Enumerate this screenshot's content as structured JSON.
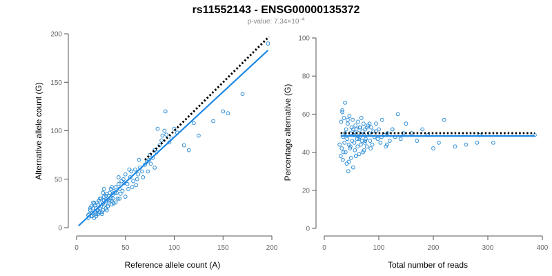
{
  "figure": {
    "title": "rs11552143 - ENSG00000135372",
    "subtitle_prefix": "p-value: 7.34×10",
    "subtitle_exp": "−4"
  },
  "colors": {
    "points": "#2b8cd6",
    "fit": "#1e88e5",
    "reference": "#000000",
    "axis": "#555555"
  },
  "chart_data": [
    {
      "type": "scatter",
      "xlabel": "Reference allele count (A)",
      "ylabel": "Alternative allele count (G)",
      "xlim": [
        0,
        200
      ],
      "ylim": [
        0,
        200
      ],
      "xticks": [
        0,
        50,
        100,
        150,
        200
      ],
      "yticks": [
        0,
        50,
        100,
        150,
        200
      ],
      "grid": false,
      "lines": [
        {
          "kind": "fit",
          "x": [
            2,
            196
          ],
          "y": [
            2,
            183
          ]
        },
        {
          "kind": "reference",
          "x": [
            70,
            197
          ],
          "y": [
            70,
            197
          ]
        }
      ],
      "x": [
        12,
        13,
        14,
        15,
        15,
        16,
        17,
        18,
        18,
        19,
        20,
        20,
        21,
        22,
        22,
        23,
        24,
        25,
        25,
        26,
        27,
        27,
        28,
        29,
        30,
        30,
        31,
        32,
        32,
        33,
        34,
        35,
        35,
        36,
        37,
        38,
        38,
        40,
        41,
        42,
        43,
        44,
        45,
        46,
        48,
        50,
        50,
        52,
        53,
        55,
        56,
        58,
        60,
        62,
        63,
        65,
        67,
        70,
        72,
        74,
        75,
        78,
        80,
        82,
        85,
        87,
        88,
        90,
        92,
        95,
        97,
        100,
        103,
        110,
        115,
        120,
        125,
        140,
        150,
        155,
        170,
        196,
        14,
        16,
        19,
        21,
        23,
        26,
        28,
        31,
        33,
        36,
        39,
        42,
        47,
        54,
        61,
        68,
        76,
        83,
        91,
        12,
        17,
        22,
        27,
        32,
        37,
        43,
        49,
        57,
        64,
        73,
        80,
        33,
        30,
        28,
        40,
        44,
        36,
        24,
        20
      ],
      "y": [
        10,
        14,
        18,
        12,
        22,
        15,
        20,
        10,
        25,
        16,
        20,
        12,
        18,
        24,
        14,
        28,
        20,
        22,
        30,
        16,
        25,
        18,
        32,
        24,
        28,
        20,
        35,
        22,
        30,
        26,
        36,
        30,
        40,
        28,
        34,
        38,
        25,
        42,
        36,
        30,
        45,
        40,
        35,
        48,
        50,
        32,
        55,
        45,
        40,
        52,
        58,
        48,
        60,
        50,
        55,
        62,
        58,
        65,
        68,
        70,
        75,
        72,
        80,
        78,
        85,
        90,
        95,
        100,
        96,
        88,
        92,
        102,
        98,
        85,
        80,
        108,
        95,
        110,
        120,
        118,
        138,
        190,
        20,
        12,
        23,
        26,
        16,
        14,
        28,
        18,
        33,
        24,
        36,
        30,
        38,
        60,
        44,
        52,
        66,
        102,
        120,
        13,
        26,
        18,
        36,
        22,
        30,
        52,
        46,
        42,
        70,
        58,
        62,
        28,
        33,
        40,
        26,
        30,
        42,
        30,
        14
      ]
    },
    {
      "type": "scatter",
      "xlabel": "Total number of reads",
      "ylabel": "Percentage alternative (G)",
      "xlim": [
        0,
        400
      ],
      "ylim": [
        0,
        100
      ],
      "xticks": [
        0,
        100,
        200,
        300,
        400
      ],
      "yticks": [
        0,
        20,
        40,
        60,
        80,
        100
      ],
      "grid": false,
      "lines": [
        {
          "kind": "fit",
          "x": [
            30,
            386
          ],
          "y": [
            48.5,
            48.5
          ]
        },
        {
          "kind": "reference",
          "x": [
            30,
            386
          ],
          "y": [
            50,
            50
          ]
        }
      ],
      "x": [
        28,
        30,
        31,
        32,
        33,
        34,
        35,
        36,
        37,
        38,
        39,
        40,
        41,
        42,
        43,
        44,
        45,
        46,
        47,
        48,
        49,
        50,
        51,
        52,
        53,
        54,
        55,
        56,
        57,
        58,
        59,
        60,
        61,
        62,
        63,
        64,
        65,
        66,
        67,
        68,
        69,
        70,
        71,
        72,
        73,
        74,
        75,
        76,
        78,
        80,
        82,
        84,
        86,
        88,
        90,
        92,
        95,
        98,
        100,
        103,
        106,
        110,
        113,
        116,
        120,
        125,
        130,
        135,
        140,
        145,
        150,
        160,
        170,
        180,
        190,
        200,
        210,
        220,
        240,
        260,
        280,
        285,
        310,
        386,
        35,
        45,
        55,
        65,
        75,
        85,
        95,
        105,
        115,
        125,
        33,
        43,
        53,
        63,
        73,
        83,
        38,
        48,
        58,
        68,
        78
      ],
      "y": [
        44,
        38,
        56,
        42,
        62,
        36,
        48,
        58,
        45,
        66,
        40,
        52,
        34,
        47,
        55,
        30,
        44,
        59,
        42,
        50,
        37,
        53,
        46,
        57,
        32,
        49,
        45,
        41,
        54,
        38,
        52,
        47,
        43,
        56,
        50,
        39,
        48,
        53,
        44,
        58,
        46,
        51,
        40,
        55,
        49,
        45,
        52,
        47,
        43,
        54,
        50,
        46,
        53,
        44,
        51,
        48,
        55,
        47,
        52,
        45,
        57,
        49,
        43,
        50,
        46,
        52,
        48,
        60,
        47,
        50,
        55,
        50,
        46,
        52,
        49,
        42,
        45,
        57,
        43,
        44,
        45,
        49,
        45,
        49,
        40,
        35,
        50,
        53,
        46,
        42,
        51,
        48,
        44,
        52,
        61,
        57,
        52,
        47,
        41,
        55,
        50,
        43,
        38,
        49,
        53
      ]
    }
  ]
}
